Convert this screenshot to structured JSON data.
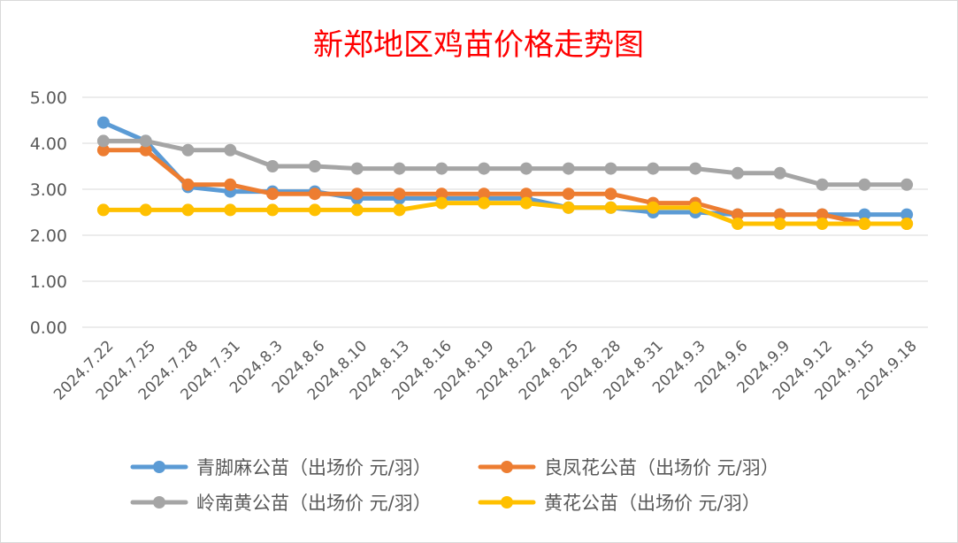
{
  "chart_data": {
    "type": "line",
    "title": "新郑地区鸡苗价格走势图",
    "xlabel": "",
    "ylabel": "",
    "ylim": [
      0,
      5
    ],
    "y_ticks": [
      "0.00",
      "1.00",
      "2.00",
      "3.00",
      "4.00",
      "5.00"
    ],
    "grid": true,
    "legend_position": "bottom",
    "categories": [
      "2024.7.22",
      "2024.7.25",
      "2024.7.28",
      "2024.7.31",
      "2024.8.3",
      "2024.8.6",
      "2024.8.10",
      "2024.8.13",
      "2024.8.16",
      "2024.8.19",
      "2024.8.22",
      "2024.8.25",
      "2024.8.28",
      "2024.8.31",
      "2024.9.3",
      "2024.9.6",
      "2024.9.9",
      "2024.9.12",
      "2024.9.15",
      "2024.9.18"
    ],
    "series": [
      {
        "name": "青脚麻公苗（出场价 元/羽）",
        "color": "#5b9bd5",
        "values": [
          4.45,
          4.05,
          3.05,
          2.95,
          2.95,
          2.95,
          2.8,
          2.8,
          2.8,
          2.8,
          2.8,
          2.6,
          2.6,
          2.5,
          2.5,
          2.45,
          2.45,
          2.45,
          2.45,
          2.45
        ]
      },
      {
        "name": "良凤花公苗（出场价 元/羽）",
        "color": "#ed7d31",
        "values": [
          3.85,
          3.85,
          3.1,
          3.1,
          2.9,
          2.9,
          2.9,
          2.9,
          2.9,
          2.9,
          2.9,
          2.9,
          2.9,
          2.7,
          2.7,
          2.45,
          2.45,
          2.45,
          2.25,
          2.25
        ]
      },
      {
        "name": "岭南黄公苗（出场价 元/羽）",
        "color": "#a5a5a5",
        "values": [
          4.05,
          4.05,
          3.85,
          3.85,
          3.5,
          3.5,
          3.45,
          3.45,
          3.45,
          3.45,
          3.45,
          3.45,
          3.45,
          3.45,
          3.45,
          3.35,
          3.35,
          3.1,
          3.1,
          3.1
        ]
      },
      {
        "name": "黄花公苗（出场价 元/羽）",
        "color": "#ffc000",
        "values": [
          2.55,
          2.55,
          2.55,
          2.55,
          2.55,
          2.55,
          2.55,
          2.55,
          2.7,
          2.7,
          2.7,
          2.6,
          2.6,
          2.6,
          2.6,
          2.25,
          2.25,
          2.25,
          2.25,
          2.25
        ]
      }
    ]
  }
}
